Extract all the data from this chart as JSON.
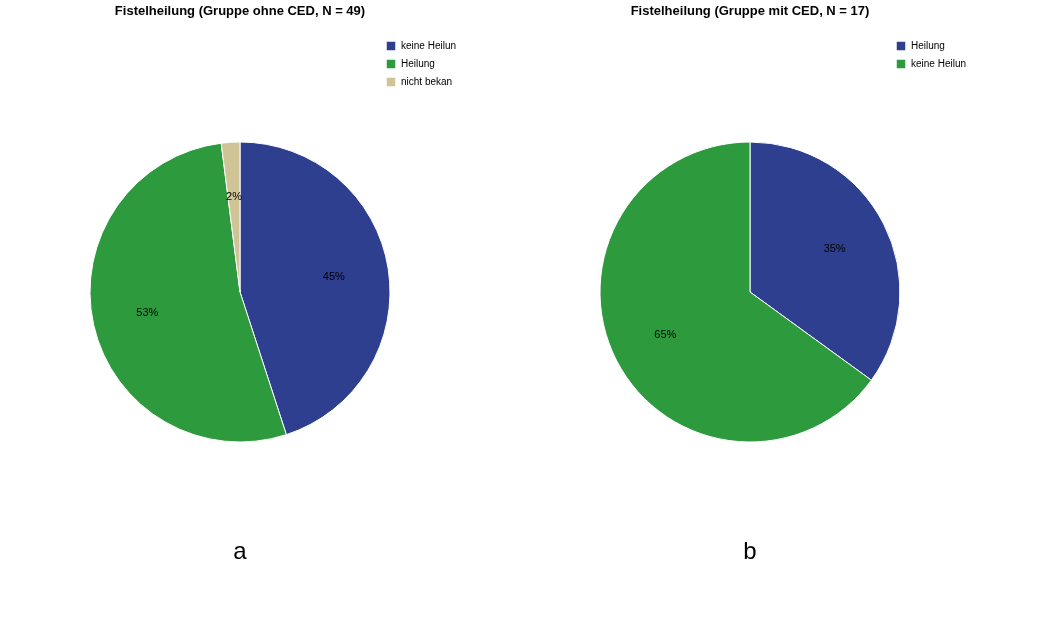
{
  "chart_data": [
    {
      "type": "pie",
      "title": "Fistelheilung (Gruppe ohne CED, N = 49)",
      "categories": [
        "keine Heilun",
        "Heilung",
        "nicht bekan"
      ],
      "values": [
        45,
        53,
        2
      ],
      "colors": [
        "#2e3f8f",
        "#2d9a3e",
        "#cfc496"
      ],
      "value_labels": [
        "45%",
        "53%",
        "2%"
      ],
      "legend": "top right",
      "annotations": [
        "a"
      ]
    },
    {
      "type": "pie",
      "title": "Fistelheilung (Gruppe mit CED, N = 17)",
      "categories": [
        "Heilung",
        "keine Heilun"
      ],
      "values": [
        35,
        65
      ],
      "colors": [
        "#2e3f8f",
        "#2d9a3e"
      ],
      "value_labels": [
        "35%",
        "65%"
      ],
      "legend": "top right",
      "annotations": [
        "b"
      ]
    }
  ]
}
